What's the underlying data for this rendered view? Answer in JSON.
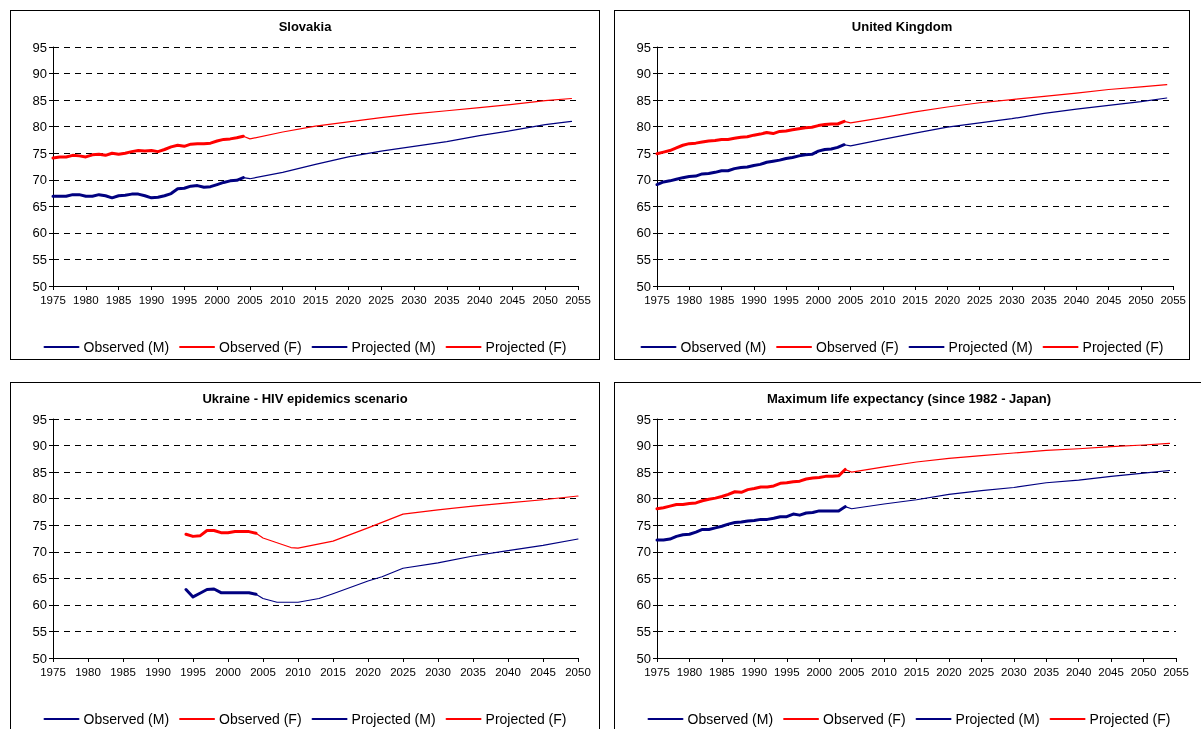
{
  "chart_data": [
    {
      "type": "line",
      "title": "Slovakia",
      "xlim": [
        1975,
        2055
      ],
      "xticks": [
        1975,
        1980,
        1985,
        1990,
        1995,
        2000,
        2005,
        2010,
        2015,
        2020,
        2025,
        2030,
        2035,
        2040,
        2045,
        2050,
        2055
      ],
      "ylim": [
        50,
        95
      ],
      "yticks": [
        50,
        55,
        60,
        65,
        70,
        75,
        80,
        85,
        90,
        95
      ],
      "grid": "y",
      "legend": "bottom",
      "series": [
        {
          "name": "Observed (M)",
          "color": "#000080",
          "x": [
            1975,
            1976,
            1977,
            1978,
            1979,
            1980,
            1981,
            1982,
            1983,
            1984,
            1985,
            1986,
            1987,
            1988,
            1989,
            1990,
            1991,
            1992,
            1993,
            1994,
            1995,
            1996,
            1997,
            1998,
            1999,
            2000,
            2001,
            2002,
            2003,
            2004
          ],
          "values": [
            66.9,
            66.9,
            66.9,
            67.2,
            67.2,
            66.9,
            66.9,
            67.2,
            67.0,
            66.6,
            67.0,
            67.1,
            67.3,
            67.3,
            67.0,
            66.6,
            66.7,
            67.0,
            67.4,
            68.3,
            68.4,
            68.8,
            68.9,
            68.6,
            68.7,
            69.1,
            69.5,
            69.8,
            69.9,
            70.4
          ]
        },
        {
          "name": "Observed (F)",
          "color": "#ff0000",
          "x": [
            1975,
            1976,
            1977,
            1978,
            1979,
            1980,
            1981,
            1982,
            1983,
            1984,
            1985,
            1986,
            1987,
            1988,
            1989,
            1990,
            1991,
            1992,
            1993,
            1994,
            1995,
            1996,
            1997,
            1998,
            1999,
            2000,
            2001,
            2002,
            2003,
            2004
          ],
          "values": [
            74.1,
            74.3,
            74.3,
            74.6,
            74.5,
            74.3,
            74.7,
            74.8,
            74.6,
            75.0,
            74.8,
            75.0,
            75.3,
            75.5,
            75.4,
            75.5,
            75.3,
            75.7,
            76.2,
            76.5,
            76.3,
            76.7,
            76.8,
            76.8,
            76.9,
            77.3,
            77.6,
            77.7,
            77.9,
            78.2
          ]
        },
        {
          "name": "Projected (M)",
          "color": "#000080",
          "x": [
            2004,
            2005,
            2010,
            2015,
            2020,
            2025,
            2030,
            2035,
            2040,
            2045,
            2050,
            2054
          ],
          "values": [
            70.4,
            70.2,
            71.4,
            72.9,
            74.3,
            75.4,
            76.3,
            77.2,
            78.3,
            79.3,
            80.4,
            81.0
          ]
        },
        {
          "name": "Projected (F)",
          "color": "#ff0000",
          "x": [
            2004,
            2005,
            2010,
            2015,
            2020,
            2025,
            2030,
            2035,
            2040,
            2045,
            2050,
            2054
          ],
          "values": [
            78.2,
            77.7,
            79.0,
            80.1,
            80.9,
            81.7,
            82.4,
            83.0,
            83.6,
            84.2,
            84.9,
            85.3
          ]
        }
      ]
    },
    {
      "type": "line",
      "title": "United Kingdom",
      "xlim": [
        1975,
        2055
      ],
      "xticks": [
        1975,
        1980,
        1985,
        1990,
        1995,
        2000,
        2005,
        2010,
        2015,
        2020,
        2025,
        2030,
        2035,
        2040,
        2045,
        2050,
        2055
      ],
      "ylim": [
        50,
        95
      ],
      "yticks": [
        50,
        55,
        60,
        65,
        70,
        75,
        80,
        85,
        90,
        95
      ],
      "grid": "y",
      "legend": "bottom",
      "series": [
        {
          "name": "Observed (M)",
          "color": "#000080",
          "x": [
            1975,
            1976,
            1977,
            1978,
            1979,
            1980,
            1981,
            1982,
            1983,
            1984,
            1985,
            1986,
            1987,
            1988,
            1989,
            1990,
            1991,
            1992,
            1993,
            1994,
            1995,
            1996,
            1997,
            1998,
            1999,
            2000,
            2001,
            2002,
            2003,
            2004
          ],
          "values": [
            69.1,
            69.6,
            69.8,
            70.1,
            70.4,
            70.6,
            70.7,
            71.1,
            71.2,
            71.4,
            71.7,
            71.7,
            72.1,
            72.3,
            72.4,
            72.7,
            72.9,
            73.3,
            73.5,
            73.7,
            74.0,
            74.2,
            74.5,
            74.7,
            74.8,
            75.4,
            75.7,
            75.8,
            76.1,
            76.6
          ]
        },
        {
          "name": "Observed (F)",
          "color": "#ff0000",
          "x": [
            1975,
            1976,
            1977,
            1978,
            1979,
            1980,
            1981,
            1982,
            1983,
            1984,
            1985,
            1986,
            1987,
            1988,
            1989,
            1990,
            1991,
            1992,
            1993,
            1994,
            1995,
            1996,
            1997,
            1998,
            1999,
            2000,
            2001,
            2002,
            2003,
            2004
          ],
          "values": [
            74.9,
            75.2,
            75.5,
            76.0,
            76.5,
            76.8,
            76.9,
            77.1,
            77.3,
            77.4,
            77.6,
            77.6,
            77.8,
            78.0,
            78.1,
            78.4,
            78.6,
            78.9,
            78.7,
            79.1,
            79.2,
            79.4,
            79.6,
            79.8,
            79.9,
            80.2,
            80.4,
            80.5,
            80.5,
            81.0
          ]
        },
        {
          "name": "Projected (M)",
          "color": "#000080",
          "x": [
            2004,
            2005,
            2010,
            2015,
            2020,
            2025,
            2030,
            2035,
            2040,
            2045,
            2050,
            2054
          ],
          "values": [
            76.6,
            76.4,
            77.6,
            78.8,
            79.9,
            80.7,
            81.5,
            82.5,
            83.3,
            84.0,
            84.7,
            85.4
          ]
        },
        {
          "name": "Projected (F)",
          "color": "#ff0000",
          "x": [
            2004,
            2005,
            2010,
            2015,
            2020,
            2025,
            2030,
            2035,
            2040,
            2045,
            2050,
            2054
          ],
          "values": [
            81.0,
            80.7,
            81.7,
            82.8,
            83.7,
            84.5,
            85.1,
            85.7,
            86.3,
            87.0,
            87.5,
            87.9
          ]
        }
      ]
    },
    {
      "type": "line",
      "title": "Ukraine - HIV epidemics scenario",
      "xlim": [
        1975,
        2050
      ],
      "xticks": [
        1975,
        1980,
        1985,
        1990,
        1995,
        2000,
        2005,
        2010,
        2015,
        2020,
        2025,
        2030,
        2035,
        2040,
        2045,
        2050
      ],
      "ylim": [
        50,
        95
      ],
      "yticks": [
        50,
        55,
        60,
        65,
        70,
        75,
        80,
        85,
        90,
        95
      ],
      "grid": "y",
      "legend": "bottom",
      "series": [
        {
          "name": "Observed (M)",
          "color": "#000080",
          "x": [
            1994,
            1995,
            1996,
            1997,
            1998,
            1999,
            2000,
            2001,
            2002,
            2003,
            2004
          ],
          "values": [
            62.9,
            61.5,
            62.2,
            62.9,
            63.0,
            62.3,
            62.3,
            62.3,
            62.3,
            62.3,
            62.0
          ]
        },
        {
          "name": "Observed (F)",
          "color": "#ff0000",
          "x": [
            1994,
            1995,
            1996,
            1997,
            1998,
            1999,
            2000,
            2001,
            2002,
            2003,
            2004
          ],
          "values": [
            73.3,
            72.9,
            73.0,
            74.0,
            74.0,
            73.6,
            73.6,
            73.8,
            73.8,
            73.8,
            73.5
          ]
        },
        {
          "name": "Projected (M)",
          "color": "#000080",
          "x": [
            2004,
            2005,
            2007,
            2010,
            2013,
            2015,
            2020,
            2022,
            2025,
            2030,
            2035,
            2040,
            2045,
            2050
          ],
          "values": [
            62.0,
            61.2,
            60.5,
            60.5,
            61.2,
            62.1,
            64.5,
            65.3,
            66.9,
            67.9,
            69.2,
            70.2,
            71.2,
            72.4
          ]
        },
        {
          "name": "Projected (F)",
          "color": "#ff0000",
          "x": [
            2004,
            2005,
            2009,
            2010,
            2015,
            2020,
            2025,
            2030,
            2035,
            2040,
            2045,
            2050
          ],
          "values": [
            73.5,
            72.6,
            70.8,
            70.7,
            72.0,
            74.5,
            77.1,
            77.9,
            78.6,
            79.2,
            79.8,
            80.5
          ]
        }
      ]
    },
    {
      "type": "line",
      "title": "Maximum life expectancy (since 1982 - Japan)",
      "xlim": [
        1975,
        2055
      ],
      "xticks": [
        1975,
        1980,
        1985,
        1990,
        1995,
        2000,
        2005,
        2010,
        2015,
        2020,
        2025,
        2030,
        2035,
        2040,
        2045,
        2050,
        2055
      ],
      "ylim": [
        50,
        95
      ],
      "yticks": [
        50,
        55,
        60,
        65,
        70,
        75,
        80,
        85,
        90,
        95
      ],
      "grid": "y",
      "legend": "bottom",
      "series": [
        {
          "name": "Observed (M)",
          "color": "#000080",
          "x": [
            1975,
            1976,
            1977,
            1978,
            1979,
            1980,
            1981,
            1982,
            1983,
            1984,
            1985,
            1986,
            1987,
            1988,
            1989,
            1990,
            1991,
            1992,
            1993,
            1994,
            1995,
            1996,
            1997,
            1998,
            1999,
            2000,
            2001,
            2002,
            2003,
            2004
          ],
          "values": [
            72.2,
            72.2,
            72.4,
            72.9,
            73.2,
            73.3,
            73.7,
            74.2,
            74.2,
            74.5,
            74.8,
            75.2,
            75.5,
            75.6,
            75.8,
            75.9,
            76.1,
            76.1,
            76.3,
            76.6,
            76.6,
            77.1,
            76.9,
            77.3,
            77.4,
            77.7,
            77.7,
            77.7,
            77.7,
            78.5
          ]
        },
        {
          "name": "Observed (F)",
          "color": "#ff0000",
          "x": [
            1975,
            1976,
            1977,
            1978,
            1979,
            1980,
            1981,
            1982,
            1983,
            1984,
            1985,
            1986,
            1987,
            1988,
            1989,
            1990,
            1991,
            1992,
            1993,
            1994,
            1995,
            1996,
            1997,
            1998,
            1999,
            2000,
            2001,
            2002,
            2003,
            2004
          ],
          "values": [
            78.1,
            78.3,
            78.6,
            78.9,
            78.9,
            79.1,
            79.2,
            79.6,
            79.9,
            80.1,
            80.4,
            80.8,
            81.3,
            81.2,
            81.7,
            81.9,
            82.2,
            82.2,
            82.4,
            82.9,
            83.0,
            83.2,
            83.3,
            83.7,
            83.9,
            84.0,
            84.2,
            84.2,
            84.3,
            85.5
          ]
        },
        {
          "name": "Projected (M)",
          "color": "#000080",
          "x": [
            2004,
            2005,
            2010,
            2015,
            2020,
            2025,
            2030,
            2035,
            2040,
            2045,
            2050,
            2054
          ],
          "values": [
            78.5,
            78.1,
            79.0,
            79.8,
            80.8,
            81.5,
            82.1,
            83.0,
            83.5,
            84.2,
            84.8,
            85.3
          ]
        },
        {
          "name": "Projected (F)",
          "color": "#ff0000",
          "x": [
            2004,
            2005,
            2010,
            2015,
            2020,
            2025,
            2030,
            2035,
            2040,
            2045,
            2050,
            2054
          ],
          "values": [
            85.5,
            85.0,
            86.0,
            86.9,
            87.6,
            88.1,
            88.6,
            89.1,
            89.4,
            89.8,
            90.1,
            90.4
          ]
        }
      ]
    }
  ]
}
